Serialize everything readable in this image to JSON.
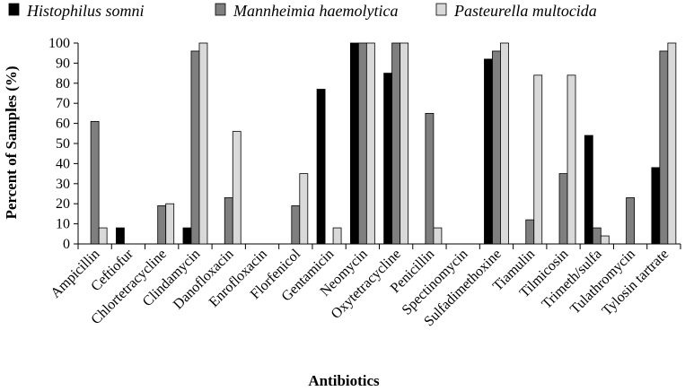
{
  "chart_data": {
    "type": "bar",
    "title": "",
    "xlabel": "Antibiotics",
    "ylabel": "Percent of Samples (%)",
    "ylim": [
      0,
      100
    ],
    "yticks": [
      0,
      10,
      20,
      30,
      40,
      50,
      60,
      70,
      80,
      90,
      100
    ],
    "grid": false,
    "legend_position": "top",
    "categories": [
      "Ampicillin",
      "Ceftiofur",
      "Chlortetracycline",
      "Clindamycin",
      "Danofloxacin",
      "Enrofloxacin",
      "Florfenicol",
      "Gentamicin",
      "Neomycin",
      "Oxytetracycline",
      "Penicillin",
      "Spectinomycin",
      "Sulfadimethoxine",
      "Tiamulin",
      "Tilmicosin",
      "Trimeth/sulfa",
      "Tulathromycin",
      "Tylosin tartrate"
    ],
    "series": [
      {
        "name": "Histophilus somni",
        "color": "#000000",
        "values": [
          0,
          8,
          0,
          8,
          0,
          0,
          0,
          77,
          100,
          85,
          0,
          0,
          92,
          0,
          0,
          54,
          0,
          38
        ]
      },
      {
        "name": "Mannheimia haemolytica",
        "color": "#7f7f7f",
        "values": [
          61,
          0,
          19,
          96,
          23,
          0,
          19,
          0,
          100,
          100,
          65,
          0,
          96,
          12,
          35,
          8,
          23,
          96
        ]
      },
      {
        "name": "Pasteurella multocida",
        "color": "#d9d9d9",
        "values": [
          8,
          0,
          20,
          100,
          56,
          0,
          35,
          8,
          100,
          100,
          8,
          0,
          100,
          84,
          84,
          4,
          0,
          100
        ]
      }
    ]
  }
}
